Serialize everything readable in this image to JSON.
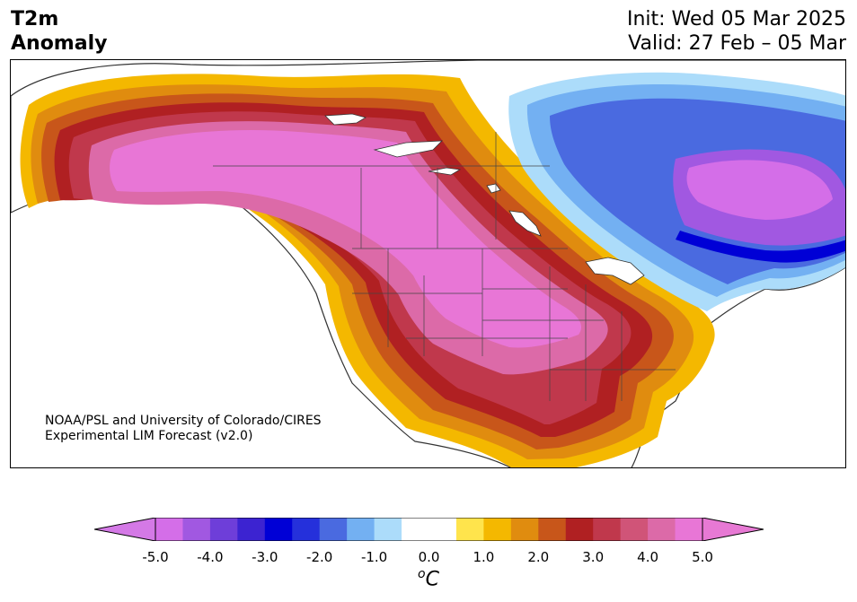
{
  "header": {
    "title_line1": "T2m",
    "title_line2": "Anomaly",
    "init": "Init: Wed 05 Mar 2025",
    "valid": "Valid: 27 Feb – 05 Mar"
  },
  "credit": {
    "line1": "NOAA/PSL and University of Colorado/CIRES",
    "line2": "Experimental LIM Forecast (v2.0)"
  },
  "colorbar": {
    "unit_sup": "o",
    "unit": "C",
    "tick_labels": [
      "-5.0",
      "-4.0",
      "-3.0",
      "-2.0",
      "-1.0",
      "0.0",
      "1.0",
      "2.0",
      "3.0",
      "4.0",
      "5.0"
    ],
    "min_color": "#d479e6",
    "max_color": "#e779d4",
    "colors": [
      "#d46ee8",
      "#a158e1",
      "#6e3ed9",
      "#3c23d1",
      "#0000d6",
      "#2530db",
      "#4a6ae0",
      "#73b0f2",
      "#acdcfa",
      "#ffffff",
      "#ffffff",
      "#ffe44c",
      "#f4b800",
      "#e08c0f",
      "#c8561a",
      "#b02022",
      "#c0384c",
      "#d05478",
      "#dc6aa8",
      "#e876d6"
    ]
  },
  "map": {
    "region": "North America",
    "colors": {
      "warm_max": "#e876d6",
      "warm_hot": "#b02022",
      "warm_mid": "#e08c0f",
      "warm_low": "#f4b800",
      "cold_core": "#0000d6",
      "cold_purple": "#a158e1",
      "cold_light": "#73b0f2",
      "lakes": "#ffffff"
    }
  }
}
